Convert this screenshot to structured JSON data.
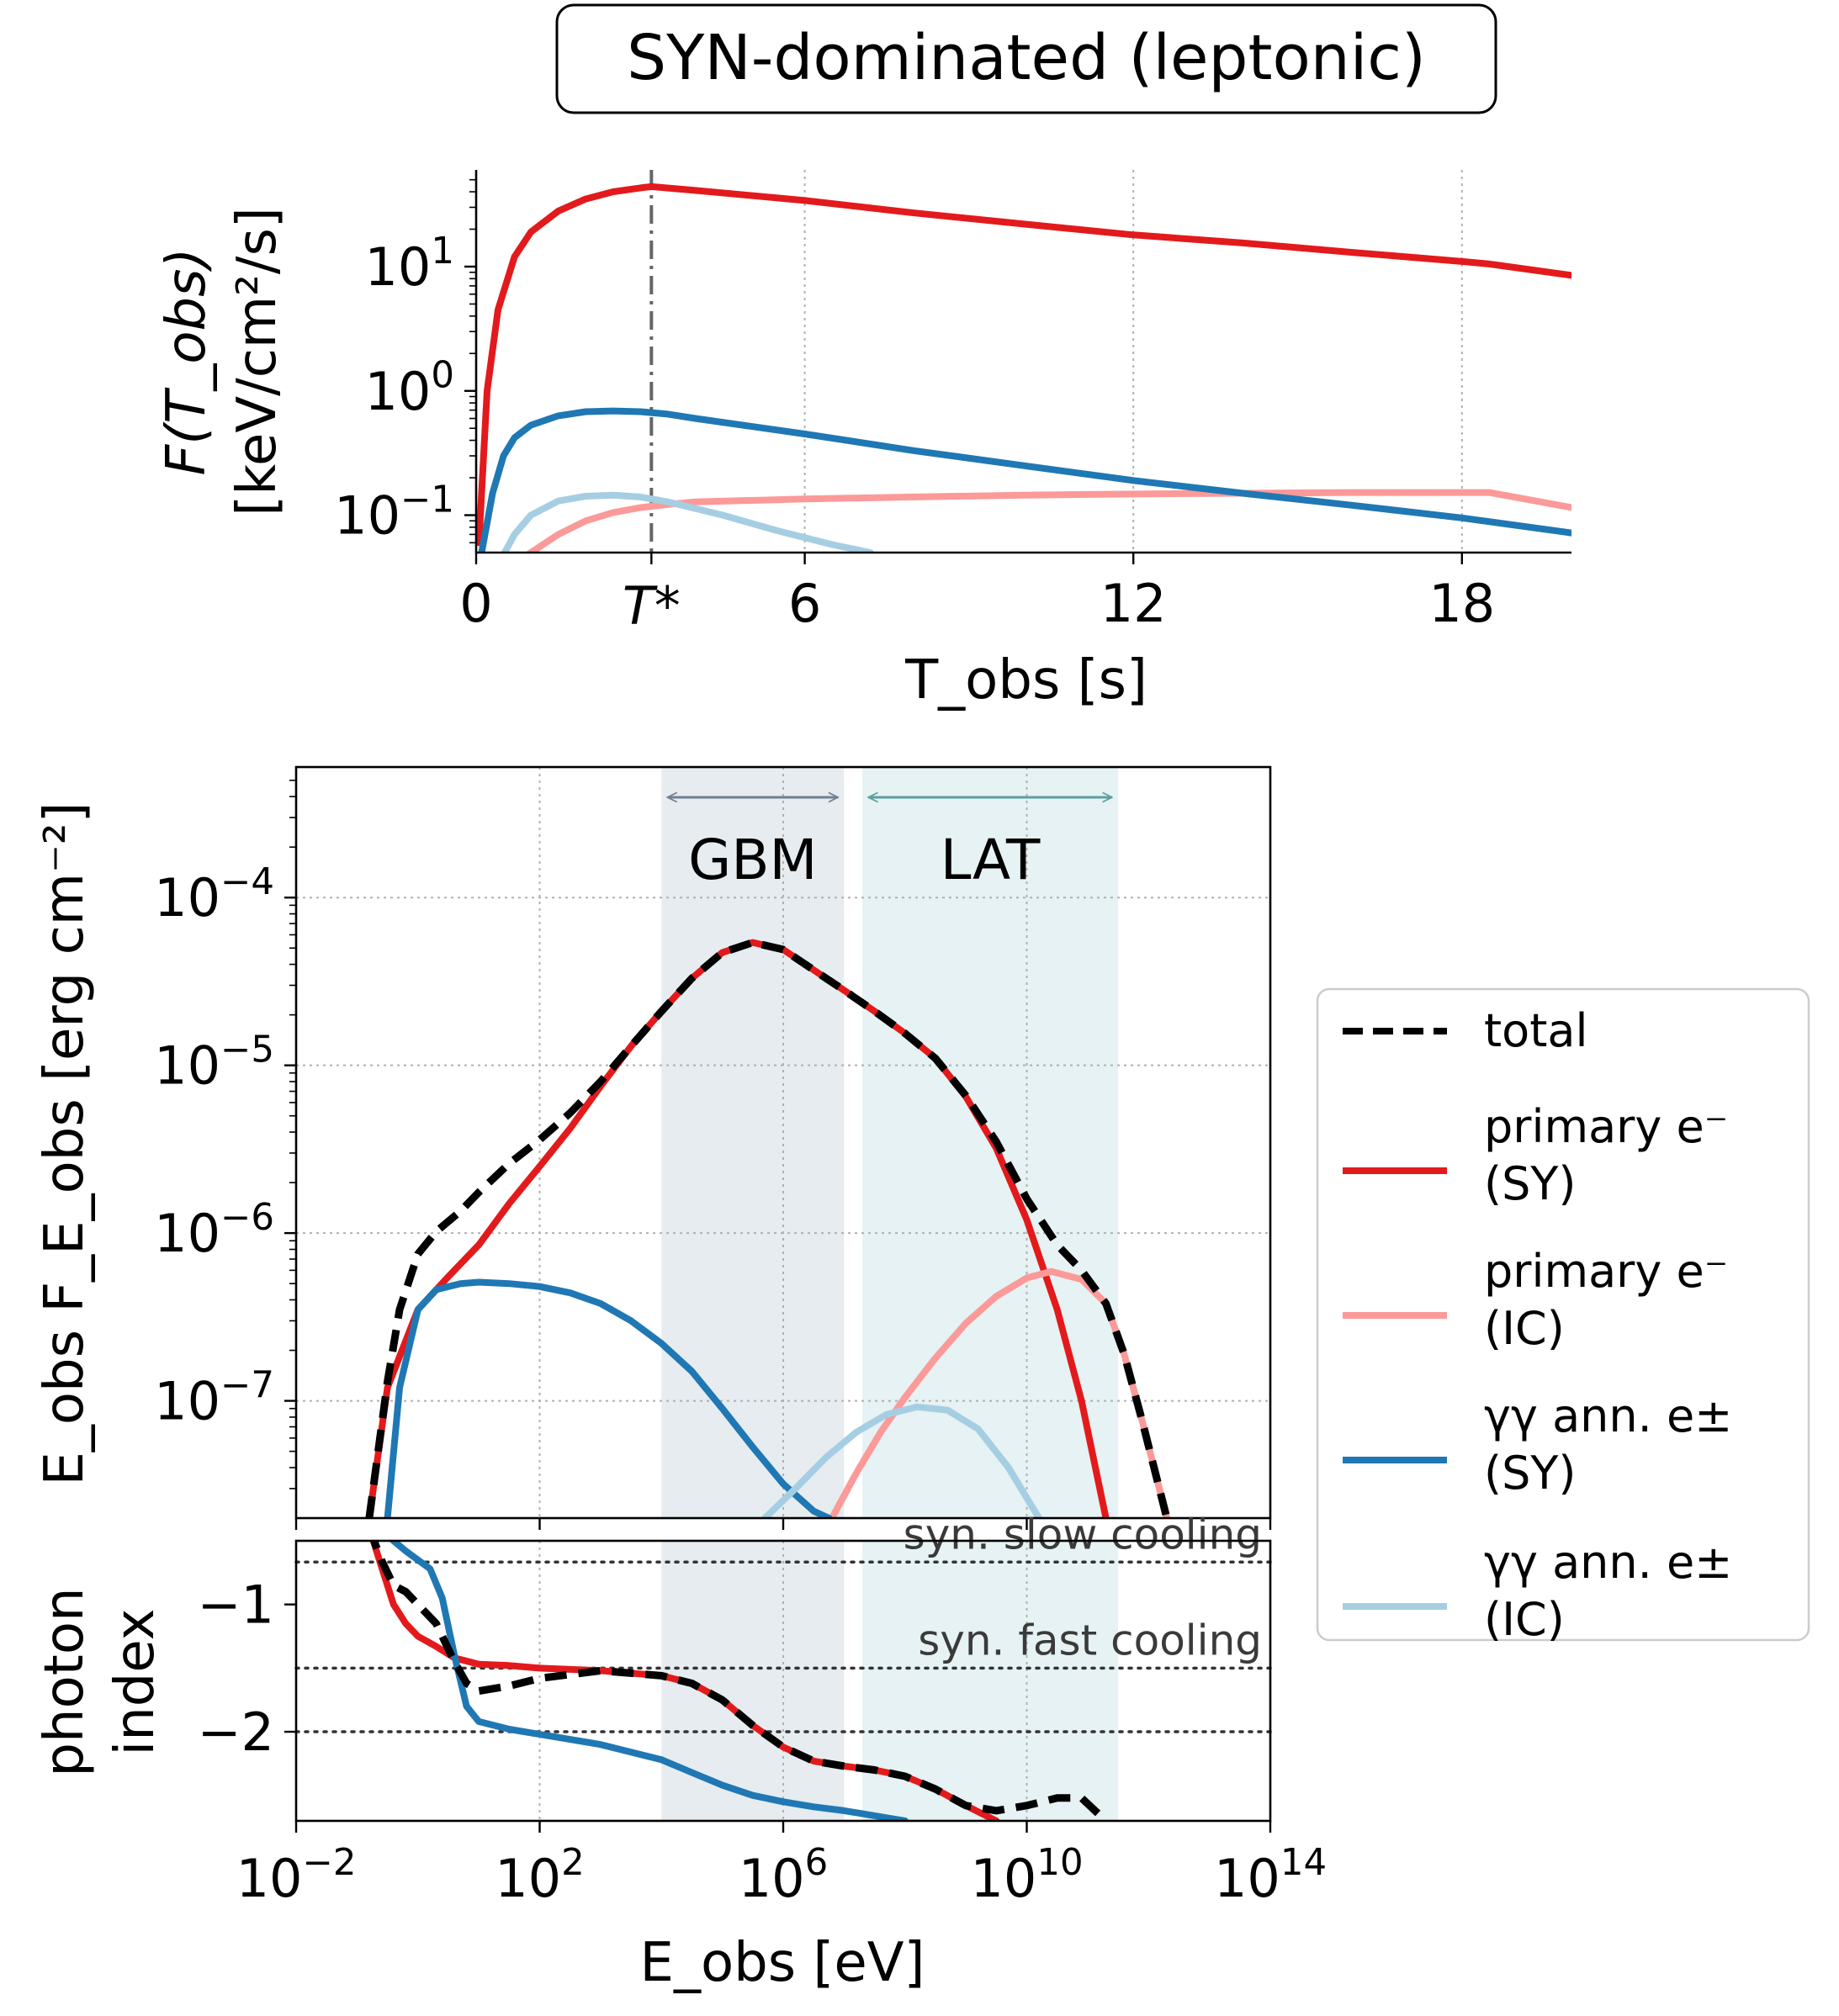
{
  "title": "SYN-dominated (leptonic)",
  "colors": {
    "primary_sy": "#e31a1c",
    "primary_ic": "#fb9a99",
    "pair_sy": "#1f78b4",
    "pair_ic": "#a6cee3",
    "total": "#000000",
    "gbm_band": "#d9e2e6",
    "lat_band": "#d9ebec",
    "gbm_text": "#708090",
    "lat_text": "#5f9ea0"
  },
  "chart_data": [
    {
      "id": "lightcurve",
      "type": "line",
      "title": "SYN-dominated (leptonic)",
      "xlabel": "T_obs [s]",
      "ylabel_line1": "F(T_obs)",
      "ylabel_line2": "[keV/cm²/s]",
      "xlim": [
        0,
        20
      ],
      "ylim": [
        0.05,
        60
      ],
      "y_scale": "log",
      "x_ticks": [
        0,
        6,
        12,
        18
      ],
      "x_tick_labels": [
        "0",
        "6",
        "12",
        "18"
      ],
      "t_star": {
        "x": 3.2,
        "label": "T*"
      },
      "y_ticks": [
        0.1,
        1,
        10
      ],
      "y_tick_labels": [
        {
          "base": "10",
          "exp": "−1"
        },
        {
          "base": "10",
          "exp": "0"
        },
        {
          "base": "10",
          "exp": "1"
        }
      ],
      "grid": "x-only dotted",
      "series": [
        {
          "key": "primary_sy",
          "x": [
            0.05,
            0.2,
            0.4,
            0.7,
            1.0,
            1.5,
            2.0,
            2.5,
            3.0,
            3.2,
            4,
            6,
            8,
            10,
            12,
            14,
            16,
            18,
            18.5,
            20
          ],
          "y": [
            0.06,
            1.0,
            4.5,
            12,
            19,
            28,
            35,
            40,
            43,
            44,
            41,
            34,
            27,
            22,
            18,
            15.5,
            13,
            11,
            10.5,
            8.5
          ]
        },
        {
          "key": "primary_ic",
          "x": [
            0.3,
            1.0,
            1.5,
            2.0,
            2.5,
            3.0,
            3.5,
            4,
            6,
            8,
            10,
            12,
            14,
            16,
            18,
            18.5,
            20
          ],
          "y": [
            0.03,
            0.05,
            0.07,
            0.09,
            0.105,
            0.115,
            0.122,
            0.128,
            0.135,
            0.14,
            0.145,
            0.148,
            0.15,
            0.152,
            0.152,
            0.152,
            0.115
          ]
        },
        {
          "key": "pair_sy",
          "x": [
            0.1,
            0.3,
            0.5,
            0.7,
            1.0,
            1.5,
            2.0,
            2.5,
            3.0,
            3.5,
            4,
            6,
            8,
            10,
            12,
            14,
            16,
            18,
            20
          ],
          "y": [
            0.05,
            0.15,
            0.3,
            0.42,
            0.53,
            0.63,
            0.68,
            0.69,
            0.68,
            0.65,
            0.6,
            0.45,
            0.33,
            0.25,
            0.19,
            0.15,
            0.12,
            0.095,
            0.072
          ]
        },
        {
          "key": "pair_ic",
          "x": [
            0.4,
            0.7,
            1.0,
            1.5,
            2.0,
            2.5,
            3.0,
            3.5,
            4.5,
            5.5,
            6.5,
            7.2
          ],
          "y": [
            0.04,
            0.07,
            0.1,
            0.13,
            0.142,
            0.145,
            0.14,
            0.128,
            0.1,
            0.075,
            0.058,
            0.05
          ]
        }
      ]
    },
    {
      "id": "sed",
      "type": "line",
      "ylabel": "E_obs F_E_obs [erg cm⁻²]",
      "xlim": [
        -2,
        14
      ],
      "x_scale": "log",
      "ylim": [
        2e-08,
        0.0006
      ],
      "y_scale": "log",
      "y_ticks": [
        1e-07,
        1e-06,
        1e-05,
        0.0001
      ],
      "y_tick_labels": [
        {
          "base": "10",
          "exp": "−7"
        },
        {
          "base": "10",
          "exp": "−6"
        },
        {
          "base": "10",
          "exp": "−5"
        },
        {
          "base": "10",
          "exp": "−4"
        }
      ],
      "grid": "dotted",
      "bands": [
        {
          "name": "GBM",
          "range": [
            4,
            7
          ],
          "arrow": [
            4.1,
            6.9
          ]
        },
        {
          "name": "LAT",
          "range": [
            7.3,
            11.5
          ],
          "arrow": [
            7.4,
            11.4
          ]
        }
      ],
      "series": [
        {
          "key": "primary_sy",
          "x": [
            -0.8,
            -0.5,
            0,
            0.5,
            1,
            1.5,
            2,
            2.5,
            3,
            3.5,
            4,
            4.5,
            5,
            5.5,
            6,
            6.5,
            7,
            7.5,
            8,
            8.5,
            9,
            9.5,
            10,
            10.5,
            10.9,
            11.3
          ],
          "y": [
            2e-08,
            1.2e-07,
            3.5e-07,
            5.5e-07,
            8.5e-07,
            1.5e-06,
            2.5e-06,
            4.2e-06,
            7.5e-06,
            1.3e-05,
            2.1e-05,
            3.3e-05,
            4.7e-05,
            5.4e-05,
            4.9e-05,
            3.7e-05,
            2.8e-05,
            2.1e-05,
            1.55e-05,
            1.1e-05,
            6.5e-06,
            3.2e-06,
            1.2e-06,
            3.5e-07,
            1e-07,
            2e-08
          ]
        },
        {
          "key": "primary_ic",
          "x": [
            6.8,
            7.2,
            7.6,
            8,
            8.5,
            9,
            9.5,
            10,
            10.4,
            10.9,
            11.3,
            11.6,
            11.9,
            12.3
          ],
          "y": [
            2e-08,
            3.7e-08,
            6.5e-08,
            1.05e-07,
            1.8e-07,
            2.9e-07,
            4.2e-07,
            5.4e-07,
            5.9e-07,
            5.3e-07,
            3.8e-07,
            1.9e-07,
            7.5e-08,
            2e-08
          ]
        },
        {
          "key": "pair_sy",
          "x": [
            -0.5,
            -0.3,
            0,
            0.3,
            0.7,
            1,
            1.5,
            2,
            2.5,
            3,
            3.5,
            4,
            4.5,
            5,
            5.5,
            6,
            6.5,
            6.75
          ],
          "y": [
            2e-08,
            1.2e-07,
            3.5e-07,
            4.6e-07,
            5e-07,
            5.1e-07,
            5e-07,
            4.8e-07,
            4.4e-07,
            3.8e-07,
            3e-07,
            2.2e-07,
            1.5e-07,
            9e-08,
            5.3e-08,
            3.2e-08,
            2.2e-08,
            2e-08
          ]
        },
        {
          "key": "pair_ic",
          "x": [
            5.7,
            6.2,
            6.7,
            7.2,
            7.7,
            8.2,
            8.7,
            9.2,
            9.7,
            10.2
          ],
          "y": [
            2e-08,
            3e-08,
            4.6e-08,
            6.5e-08,
            8.3e-08,
            9.2e-08,
            8.8e-08,
            6.8e-08,
            4e-08,
            2e-08
          ]
        },
        {
          "key": "total",
          "x": [
            -0.8,
            -0.5,
            -0.3,
            0,
            0.3,
            0.7,
            1,
            1.5,
            2,
            2.5,
            3,
            3.5,
            4,
            4.5,
            5,
            5.5,
            6,
            6.5,
            7,
            7.5,
            8,
            8.5,
            9,
            9.5,
            10,
            10.5,
            10.9,
            11.3,
            11.6,
            11.9,
            12.3
          ],
          "y": [
            2e-08,
            1.3e-07,
            3.5e-07,
            7.5e-07,
            1.02e-06,
            1.35e-06,
            1.75e-06,
            2.6e-06,
            3.6e-06,
            5.2e-06,
            8e-06,
            1.3e-05,
            2.1e-05,
            3.3e-05,
            4.7e-05,
            5.4e-05,
            4.9e-05,
            3.7e-05,
            2.8e-05,
            2.1e-05,
            1.55e-05,
            1.1e-05,
            6.6e-06,
            3.5e-06,
            1.6e-06,
            8.5e-07,
            6e-07,
            3.8e-07,
            1.9e-07,
            7.5e-08,
            2e-08
          ]
        }
      ]
    },
    {
      "id": "photon_index",
      "type": "line",
      "xlabel": "E_obs [eV]",
      "ylabel_line1": "photon",
      "ylabel_line2": "index",
      "xlim": [
        -2,
        14
      ],
      "x_scale": "log",
      "x_ticks": [
        -2,
        2,
        6,
        10,
        14
      ],
      "x_tick_labels": [
        {
          "base": "10",
          "exp": "−2"
        },
        {
          "base": "10",
          "exp": "2"
        },
        {
          "base": "10",
          "exp": "6"
        },
        {
          "base": "10",
          "exp": "10"
        },
        {
          "base": "10",
          "exp": "14"
        }
      ],
      "ylim": [
        -2.7,
        -0.5
      ],
      "y_ticks": [
        -1,
        -2
      ],
      "y_tick_labels": [
        "−1",
        "−2"
      ],
      "reference_lines": [
        {
          "y": -0.667,
          "label": "syn. slow cooling"
        },
        {
          "y": -1.5,
          "label": "syn. fast cooling"
        },
        {
          "y": -2.0,
          "label": ""
        }
      ],
      "bands": [
        {
          "name": "GBM",
          "range": [
            4,
            7
          ]
        },
        {
          "name": "LAT",
          "range": [
            7.3,
            11.5
          ]
        }
      ],
      "series": [
        {
          "key": "primary_sy",
          "x": [
            -0.8,
            -0.6,
            -0.4,
            -0.2,
            0,
            0.3,
            0.6,
            1,
            1.5,
            2,
            3,
            4,
            4.5,
            5,
            5.5,
            6,
            6.5,
            7,
            7.5,
            8,
            8.5,
            9,
            9.5
          ],
          "y": [
            -0.4,
            -0.7,
            -1.0,
            -1.15,
            -1.25,
            -1.33,
            -1.42,
            -1.47,
            -1.48,
            -1.5,
            -1.52,
            -1.56,
            -1.62,
            -1.75,
            -1.95,
            -2.12,
            -2.23,
            -2.27,
            -2.3,
            -2.35,
            -2.45,
            -2.58,
            -2.7
          ]
        },
        {
          "key": "pair_sy",
          "x": [
            -0.6,
            -0.4,
            -0.2,
            0.2,
            0.4,
            0.6,
            0.8,
            1,
            1.5,
            2,
            3,
            4,
            4.5,
            5,
            5.5,
            6,
            6.5,
            7,
            7.5,
            8
          ],
          "y": [
            -0.4,
            -0.5,
            -0.58,
            -0.72,
            -0.95,
            -1.4,
            -1.8,
            -1.92,
            -1.98,
            -2.02,
            -2.1,
            -2.22,
            -2.32,
            -2.42,
            -2.5,
            -2.55,
            -2.59,
            -2.62,
            -2.66,
            -2.7
          ]
        },
        {
          "key": "total",
          "x": [
            -0.8,
            -0.6,
            -0.4,
            -0.2,
            0,
            0.3,
            0.6,
            0.8,
            1,
            1.5,
            2,
            3,
            4,
            4.5,
            5,
            5.5,
            6,
            6.5,
            7,
            7.5,
            8,
            8.5,
            9,
            9.5,
            10,
            10.5,
            10.9,
            11.3
          ],
          "y": [
            -0.4,
            -0.65,
            -0.85,
            -0.9,
            -1.0,
            -1.15,
            -1.45,
            -1.62,
            -1.68,
            -1.64,
            -1.58,
            -1.52,
            -1.56,
            -1.62,
            -1.75,
            -1.95,
            -2.12,
            -2.23,
            -2.27,
            -2.3,
            -2.35,
            -2.45,
            -2.58,
            -2.62,
            -2.58,
            -2.52,
            -2.52,
            -2.7
          ]
        }
      ]
    }
  ],
  "legend": {
    "placement": "right",
    "entries": [
      {
        "key": "total",
        "line1": "total",
        "line2": "",
        "dashed": true
      },
      {
        "key": "primary_sy",
        "line1": "primary e⁻",
        "line2": "(SY)",
        "dashed": false
      },
      {
        "key": "primary_ic",
        "line1": "primary e⁻",
        "line2": "(IC)",
        "dashed": false
      },
      {
        "key": "pair_sy",
        "line1": "γγ ann. e±",
        "line2": "(SY)",
        "dashed": false
      },
      {
        "key": "pair_ic",
        "line1": "γγ ann. e±",
        "line2": "(IC)",
        "dashed": false
      }
    ]
  }
}
